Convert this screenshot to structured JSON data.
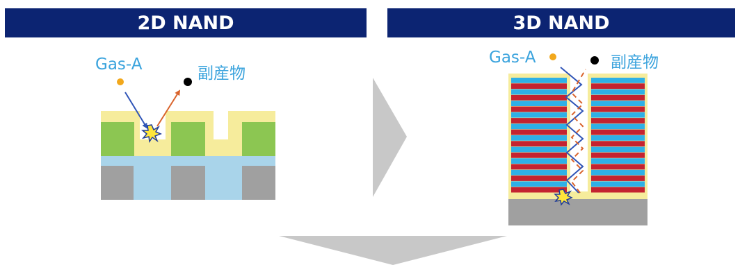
{
  "panels": {
    "left": {
      "title": "2D NAND",
      "gas_label": "Gas-A",
      "byproduct_label": "副産物"
    },
    "right": {
      "title": "3D NAND",
      "gas_label": "Gas-A",
      "byproduct_label": "副産物"
    }
  },
  "colors": {
    "banner": "#0c2472",
    "banner_text": "#ffffff",
    "label_text": "#3aa3dd",
    "film_yellow": "#f6ec9c",
    "green_block": "#8cc652",
    "light_blue": "#a9d4ea",
    "gray_block": "#a0a0a0",
    "stack_red": "#c42330",
    "stack_blue": "#2fb0e6",
    "gas_dot": "#f2a81c",
    "byproduct_dot": "#000000",
    "gas_path": "#2f54b7",
    "byproduct_path": "#d9642d",
    "arrow_gray": "#c8c8c8"
  },
  "icons": [
    "reaction-burst-icon",
    "gas-molecule-icon",
    "byproduct-molecule-icon",
    "transition-arrow-icon"
  ]
}
